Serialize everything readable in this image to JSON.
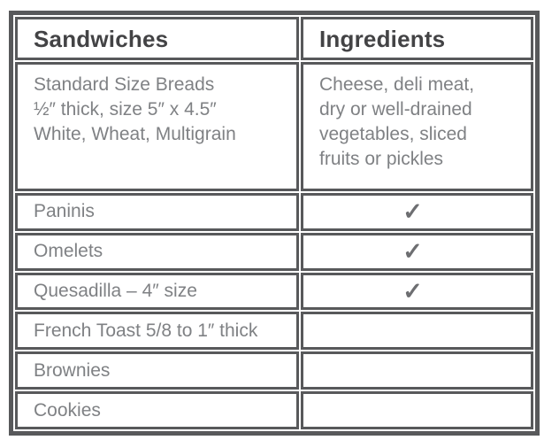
{
  "table": {
    "headers": {
      "sandwiches": "Sandwiches",
      "ingredients": "Ingredients"
    },
    "spec_row": {
      "sandwiches": "Standard Size Breads\n½″ thick, size 5″ x 4.5″\nWhite, Wheat, Multigrain",
      "ingredients": "Cheese, deli meat,\ndry or well-drained\nvegetables, sliced\nfruits or pickles"
    },
    "rows": [
      {
        "label": "Paninis",
        "mark": "✓"
      },
      {
        "label": "Omelets",
        "mark": "✓"
      },
      {
        "label": "Quesadilla – 4″ size",
        "mark": "✓"
      },
      {
        "label": "French Toast 5/8 to 1″ thick",
        "mark": ""
      },
      {
        "label": "Brownies",
        "mark": ""
      },
      {
        "label": "Cookies",
        "mark": ""
      }
    ],
    "colors": {
      "border": "#58595b",
      "header_text": "#434345",
      "body_text": "#7f8184",
      "check": "#6d6e71"
    }
  }
}
